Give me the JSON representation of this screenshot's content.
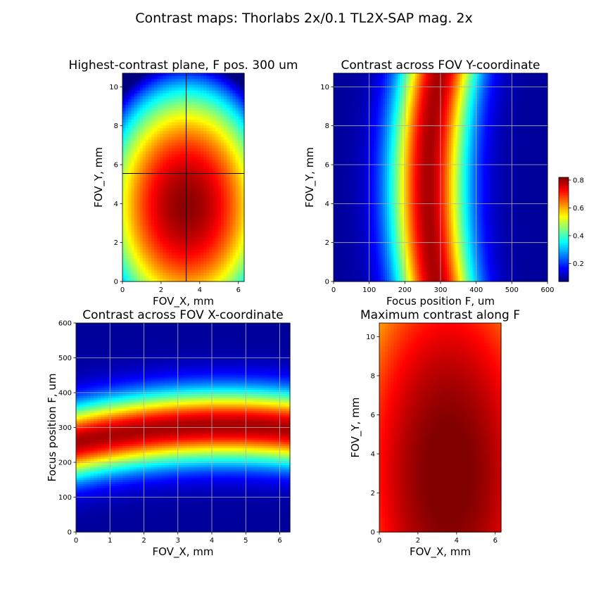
{
  "figure": {
    "suptitle": "Contrast maps: Thorlabs 2x/0.1 TL2X-SAP mag. 2x"
  },
  "chart_data": [
    {
      "type": "heatmap",
      "title": "Highest-contrast plane, F pos. 300 um",
      "xlabel": "FOV_X, mm",
      "ylabel": "FOV_Y, mm",
      "xlim": [
        0,
        6.3
      ],
      "ylim": [
        0,
        10.7
      ],
      "xticks": [
        0,
        2,
        4,
        6
      ],
      "yticks": [
        0,
        2,
        4,
        6,
        8,
        10
      ],
      "colormap": "jet",
      "clim": [
        0.07,
        0.82
      ],
      "crosshair": {
        "x": 3.3,
        "y": 5.55
      },
      "grid": false
    },
    {
      "type": "heatmap",
      "title": "Contrast across FOV Y-coordinate",
      "xlabel": "Focus position F, um",
      "ylabel": "FOV_Y, mm",
      "xlim": [
        0,
        600
      ],
      "ylim": [
        0,
        10.7
      ],
      "xticks": [
        0,
        100,
        200,
        300,
        400,
        500,
        600
      ],
      "yticks": [
        0,
        2,
        4,
        6,
        8,
        10
      ],
      "colormap": "jet",
      "grid": true,
      "colorbar": {
        "ticks": [
          0.2,
          0.4,
          0.6,
          0.8
        ],
        "range": [
          0.07,
          0.82
        ],
        "placement": "right"
      }
    },
    {
      "type": "heatmap",
      "title": "Contrast across FOV X-coordinate",
      "xlabel": "FOV_X, mm",
      "ylabel": "Focus position F, um",
      "xlim": [
        0,
        6.3
      ],
      "ylim": [
        0,
        600
      ],
      "xticks": [
        0,
        1,
        2,
        3,
        4,
        5,
        6
      ],
      "yticks": [
        0,
        100,
        200,
        300,
        400,
        500,
        600
      ],
      "colormap": "jet",
      "grid": true
    },
    {
      "type": "heatmap",
      "title": "Maximum contrast along F",
      "xlabel": "FOV_X, mm",
      "ylabel": "FOV_Y, mm",
      "xlim": [
        0,
        6.3
      ],
      "ylim": [
        0,
        10.7
      ],
      "xticks": [
        0,
        2,
        4,
        6
      ],
      "yticks": [
        0,
        2,
        4,
        6,
        8,
        10
      ],
      "colormap": "jet",
      "grid": false
    }
  ]
}
